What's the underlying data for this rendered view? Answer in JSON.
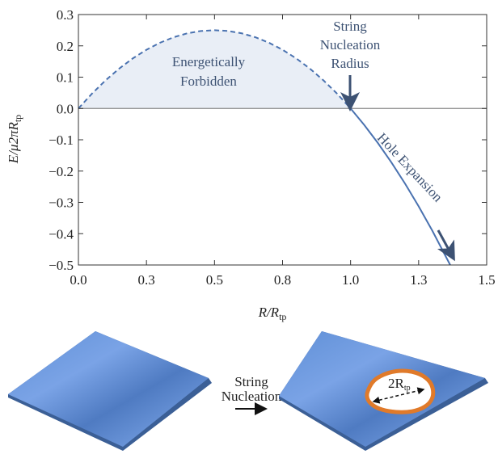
{
  "chart_data": {
    "type": "line",
    "xlabel": {
      "main": "R/R",
      "sub": "tp"
    },
    "ylabel": {
      "main": "E/μ2πR",
      "sub": "tp"
    },
    "xlim": [
      0,
      1.5
    ],
    "ylim": [
      -0.5,
      0.3
    ],
    "xticks": [
      {
        "value": 0,
        "label": "0.0"
      },
      {
        "value": 0.25,
        "label": "0.3"
      },
      {
        "value": 0.5,
        "label": "0.5"
      },
      {
        "value": 0.75,
        "label": "0.8"
      },
      {
        "value": 1,
        "label": "1.0"
      },
      {
        "value": 1.25,
        "label": "1.3"
      },
      {
        "value": 1.5,
        "label": "1.5"
      }
    ],
    "yticks": [
      0.3,
      0.2,
      0.1,
      {
        "value": 0,
        "label": "0.0"
      },
      {
        "value": -0.1,
        "label": "−0.1"
      },
      {
        "value": -0.2,
        "label": "−0.2"
      },
      {
        "value": -0.3,
        "label": "−0.3"
      },
      {
        "value": -0.4,
        "label": "−0.4"
      },
      {
        "value": -0.5,
        "label": "−0.5"
      }
    ],
    "series": [
      {
        "color": "#4a72b0",
        "style": "dashed",
        "fill": "#e9eef6",
        "x": [
          0,
          0.05,
          0.1,
          0.15,
          0.2,
          0.25,
          0.3,
          0.35,
          0.4,
          0.45,
          0.5,
          0.55,
          0.6,
          0.65,
          0.7,
          0.75,
          0.8,
          0.85,
          0.9,
          0.95,
          1
        ],
        "values": [
          0,
          0.0475,
          0.09,
          0.1275,
          0.16,
          0.1875,
          0.21,
          0.2275,
          0.24,
          0.2475,
          0.25,
          0.2475,
          0.24,
          0.2275,
          0.21,
          0.1875,
          0.16,
          0.1275,
          0.09,
          0.0475,
          0
        ]
      },
      {
        "color": "#4a72b0",
        "style": "solid",
        "x": [
          1,
          1.05,
          1.1,
          1.15,
          1.2,
          1.25,
          1.3,
          1.366
        ],
        "values": [
          0,
          -0.0525,
          -0.11,
          -0.1725,
          -0.24,
          -0.3125,
          -0.39,
          -0.5
        ]
      }
    ],
    "annotations": {
      "forbidden": [
        "Energetically",
        "Forbidden"
      ],
      "nucleation": [
        "String",
        "Nucleation",
        "Radius"
      ],
      "expansion": "Hole Expansion"
    }
  },
  "diagram": {
    "arrow_label": [
      "String",
      "Nucleation"
    ],
    "hole_label": {
      "main": "2R",
      "sub": "tp"
    }
  }
}
